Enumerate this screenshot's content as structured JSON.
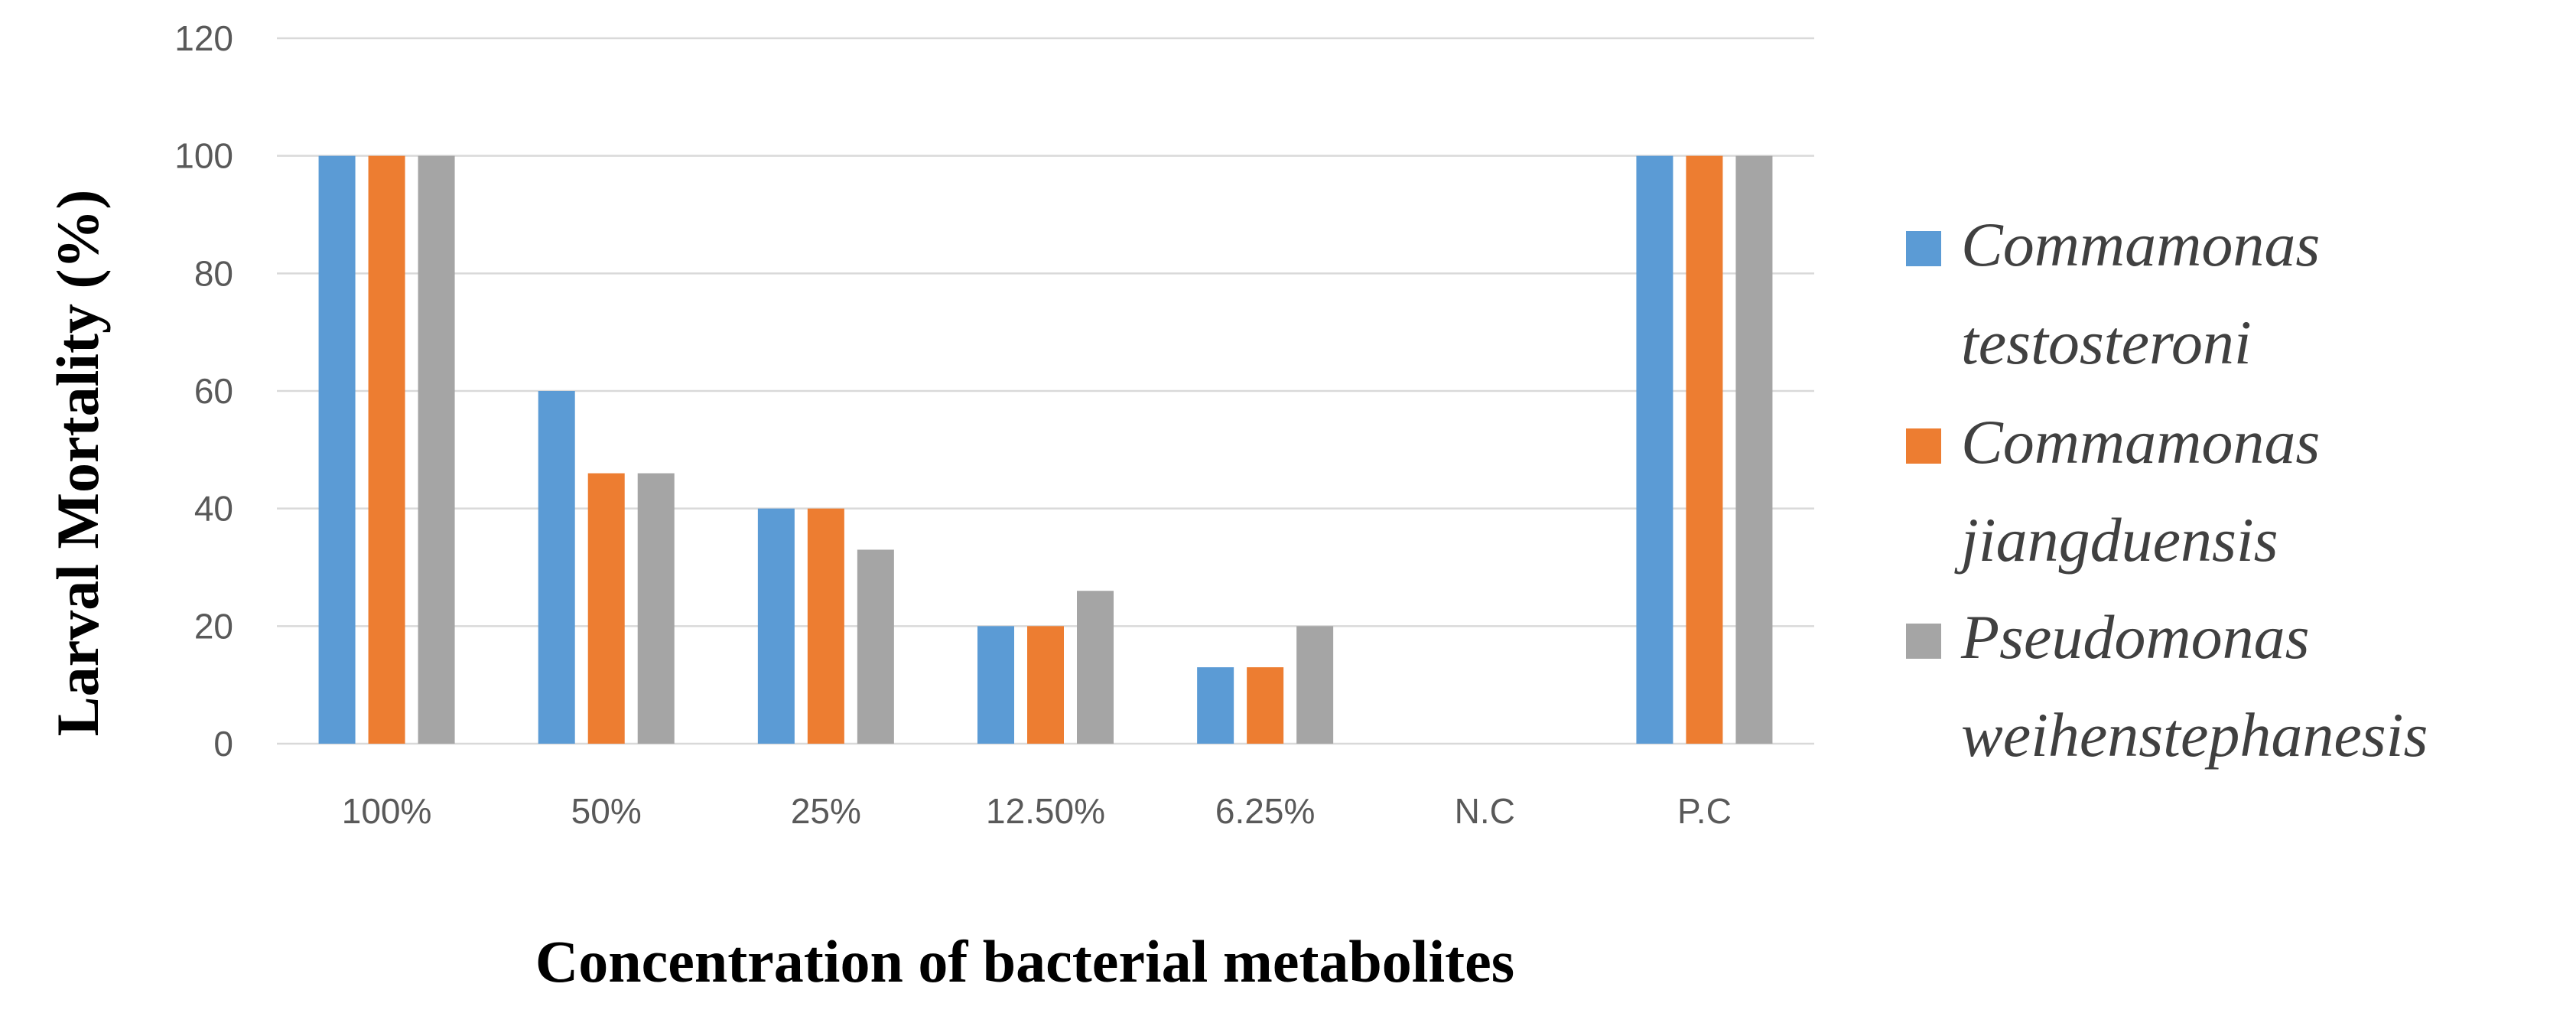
{
  "chart_data": {
    "type": "bar",
    "title": "",
    "xlabel": "Concentration of bacterial metabolites",
    "ylabel": "Larval Mortality (%)",
    "ylim": [
      0,
      120
    ],
    "yticks": [
      0,
      20,
      40,
      60,
      80,
      100,
      120
    ],
    "ytick_labels": [
      "0",
      "20",
      "40",
      "60",
      "80",
      "100",
      "120"
    ],
    "grid": true,
    "legend_position": "right",
    "categories": [
      "100%",
      "50%",
      "25%",
      "12.50%",
      "6.25%",
      "N.C",
      "P.C"
    ],
    "series": [
      {
        "name": "Commamonas testosteroni",
        "legend_lines": [
          "Commamonas",
          "testosteroni"
        ],
        "color": "#5b9bd5",
        "values": [
          100,
          60,
          40,
          20,
          13,
          0,
          100
        ]
      },
      {
        "name": "Commamonas jiangduensis",
        "legend_lines": [
          "Commamonas",
          "jiangduensis"
        ],
        "color": "#ed7d31",
        "values": [
          100,
          46,
          40,
          20,
          13,
          0,
          100
        ]
      },
      {
        "name": "Pseudomonas weihenstephanesis",
        "legend_lines": [
          "Pseudomonas",
          "weihenstephanesis"
        ],
        "color": "#a5a5a5",
        "values": [
          100,
          46,
          33,
          26,
          20,
          0,
          100
        ]
      }
    ]
  }
}
